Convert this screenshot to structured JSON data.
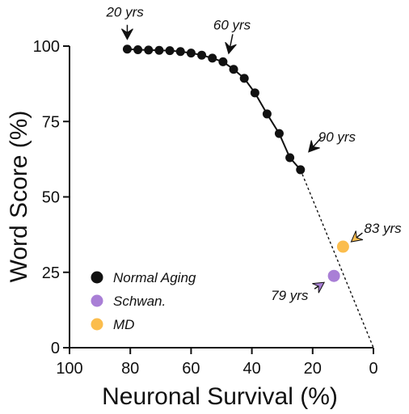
{
  "chart_data": {
    "type": "scatter",
    "xlabel": "Neuronal Survival (%)",
    "ylabel": "Word Score (%)",
    "xlim": [
      100,
      0
    ],
    "x_reversed": true,
    "ylim": [
      0,
      100
    ],
    "x_ticks": [
      100,
      80,
      60,
      40,
      20,
      0
    ],
    "y_ticks": [
      0,
      25,
      50,
      75,
      100
    ],
    "grid": false,
    "legend_position": "bottom-left",
    "series": [
      {
        "name": "Normal Aging",
        "color": "#111111",
        "connected": true,
        "points": [
          {
            "x": 81,
            "y": 99
          },
          {
            "x": 77.5,
            "y": 98.8
          },
          {
            "x": 74,
            "y": 98.7
          },
          {
            "x": 70.5,
            "y": 98.6
          },
          {
            "x": 67,
            "y": 98.5
          },
          {
            "x": 63.5,
            "y": 98.2
          },
          {
            "x": 60,
            "y": 97.7
          },
          {
            "x": 56.5,
            "y": 97
          },
          {
            "x": 53,
            "y": 96
          },
          {
            "x": 49.5,
            "y": 94.8
          },
          {
            "x": 46,
            "y": 92.3
          },
          {
            "x": 42.5,
            "y": 89.3
          },
          {
            "x": 39,
            "y": 84.5
          },
          {
            "x": 35,
            "y": 77.5
          },
          {
            "x": 31,
            "y": 71
          },
          {
            "x": 27.5,
            "y": 63
          },
          {
            "x": 24,
            "y": 59
          }
        ]
      },
      {
        "name": "Schwan.",
        "color": "#a97fd6",
        "connected": false,
        "points": [
          {
            "x": 13,
            "y": 23.8
          }
        ]
      },
      {
        "name": "MD",
        "color": "#fbbd4d",
        "connected": false,
        "points": [
          {
            "x": 10,
            "y": 33.5
          }
        ]
      }
    ],
    "extrapolation": {
      "from": {
        "x": 24,
        "y": 59
      },
      "to": {
        "x": 0,
        "y": 0
      },
      "style": "dashed"
    },
    "annotations": [
      {
        "id": "20yrs",
        "text": "20 yrs",
        "point": {
          "x": 81,
          "y": 99
        },
        "color": "#111111"
      },
      {
        "id": "60yrs",
        "text": "60 yrs",
        "point": {
          "x": 49.5,
          "y": 94.8
        },
        "color": "#111111"
      },
      {
        "id": "90yrs",
        "text": "90 yrs",
        "point": {
          "x": 24,
          "y": 59
        },
        "color": "#111111"
      },
      {
        "id": "83yrs",
        "text": "83 yrs",
        "point": {
          "x": 10,
          "y": 33.5
        },
        "color": "#fbbd4d"
      },
      {
        "id": "79yrs",
        "text": "79 yrs",
        "point": {
          "x": 13,
          "y": 23.8
        },
        "color": "#a97fd6"
      }
    ]
  }
}
